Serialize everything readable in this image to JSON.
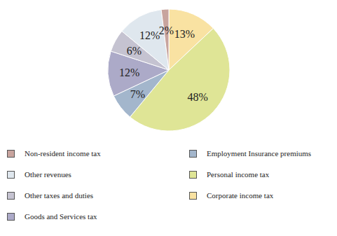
{
  "chart_data": {
    "type": "pie",
    "categories": [
      "Corporate income tax",
      "Personal income tax",
      "Employment Insurance premiums",
      "Goods and Services tax",
      "Other taxes and duties",
      "Other revenues",
      "Non-resident income tax"
    ],
    "values": [
      13,
      48,
      7,
      12,
      6,
      12,
      2
    ],
    "value_labels": [
      "13%",
      "48%",
      "7%",
      "12%",
      "6%",
      "12%",
      "2%"
    ],
    "colors": [
      "#f9e2a2",
      "#dfe596",
      "#a3b6cc",
      "#acaac8",
      "#c5c3d1",
      "#dfe7ee",
      "#c8a49e"
    ],
    "data_labels": true,
    "legend": "bottom"
  }
}
